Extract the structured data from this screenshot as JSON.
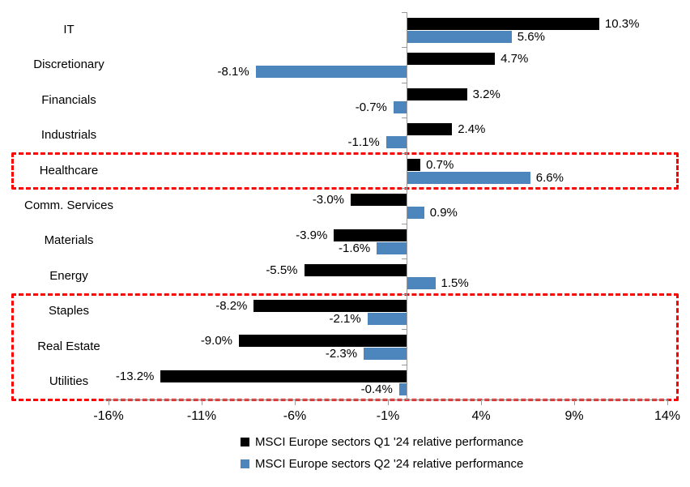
{
  "chart_data": {
    "type": "bar",
    "orientation": "horizontal",
    "title": "",
    "categories": [
      "IT",
      "Discretionary",
      "Financials",
      "Industrials",
      "Healthcare",
      "Comm. Services",
      "Materials",
      "Energy",
      "Staples",
      "Real Estate",
      "Utilities"
    ],
    "series": [
      {
        "name": "MSCI Europe sectors Q1 '24 relative performance",
        "color": "#000000",
        "values": [
          10.3,
          4.7,
          3.2,
          2.4,
          0.7,
          -3.0,
          -3.9,
          -5.5,
          -8.2,
          -9.0,
          -13.2
        ],
        "labels": [
          "10.3%",
          "4.7%",
          "3.2%",
          "2.4%",
          "0.7%",
          "-3.0%",
          "-3.9%",
          "-5.5%",
          "-8.2%",
          "-9.0%",
          "-13.2%"
        ]
      },
      {
        "name": "MSCI Europe sectors Q2 '24 relative performance",
        "color": "#4d86bd",
        "values": [
          5.6,
          -8.1,
          -0.7,
          -1.1,
          6.6,
          0.9,
          -1.6,
          1.5,
          -2.1,
          -2.3,
          -0.4
        ],
        "labels": [
          "5.6%",
          "-8.1%",
          "-0.7%",
          "-1.1%",
          "6.6%",
          "0.9%",
          "-1.6%",
          "1.5%",
          "-2.1%",
          "-2.3%",
          "-0.4%"
        ]
      }
    ],
    "x_ticks": [
      "-16%",
      "-11%",
      "-6%",
      "-1%",
      "4%",
      "9%",
      "14%"
    ],
    "x_tick_values": [
      -16,
      -11,
      -6,
      -1,
      4,
      9,
      14
    ],
    "xlim": [
      -16,
      14
    ],
    "grid": false,
    "legend_position": "bottom",
    "highlight_boxes": [
      {
        "first_row": "Healthcare",
        "last_row": "Healthcare"
      },
      {
        "first_row": "Staples",
        "last_row": "Utilities"
      }
    ],
    "colors": {
      "highlight": "#ff0000",
      "axis": "#9a9a9a",
      "q1_series": "#000000",
      "q2_series": "#4d86bd"
    }
  }
}
